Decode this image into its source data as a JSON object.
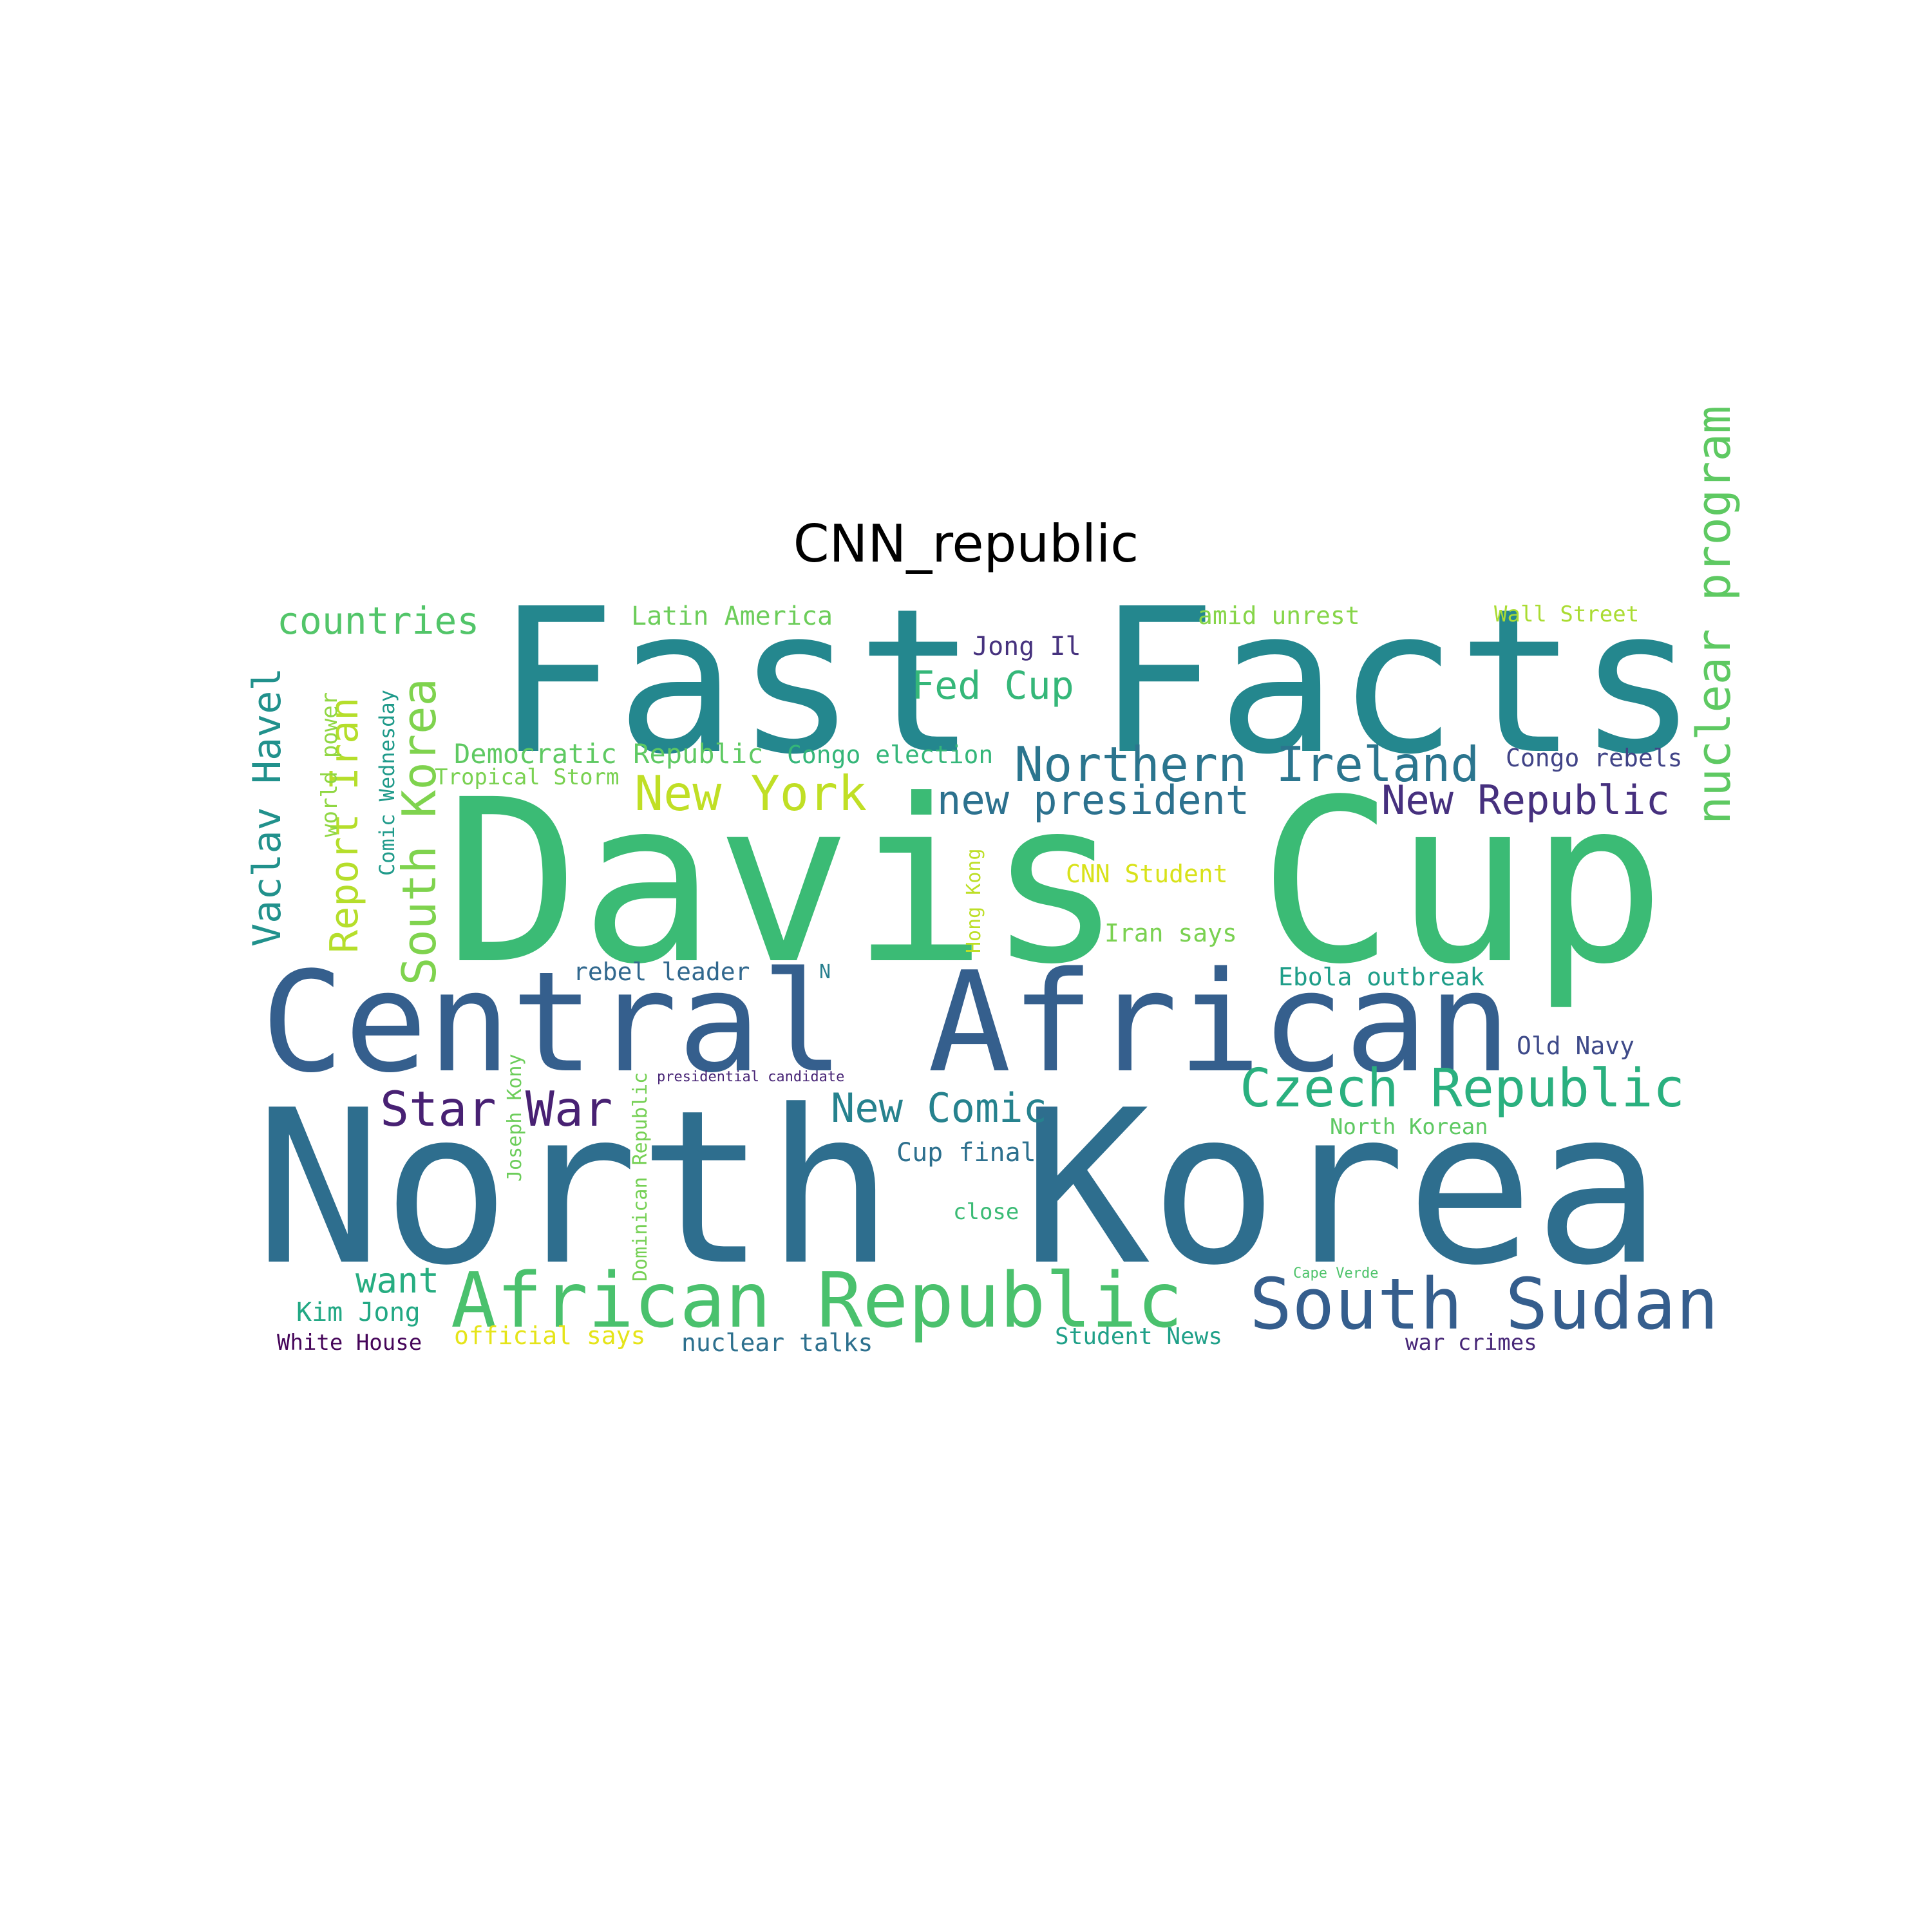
{
  "title": "CNN_republic",
  "words": [
    {
      "text": "Fast Facts",
      "color": "#24878e",
      "weight": 1.0
    },
    {
      "text": "Davis Cup",
      "color": "#3bbb75",
      "weight": 1.0
    },
    {
      "text": "Central African",
      "color": "#355f8d",
      "weight": 0.8
    },
    {
      "text": "North Korea",
      "color": "#2e6e8e",
      "weight": 1.0
    },
    {
      "text": "African Republic",
      "color": "#4ac16d",
      "weight": 0.5
    },
    {
      "text": "South Sudan",
      "color": "#355e8d",
      "weight": 0.4
    },
    {
      "text": "Northern Ireland",
      "color": "#2b758e",
      "weight": 0.3
    },
    {
      "text": "Czech Republic",
      "color": "#2ab07f",
      "weight": 0.3
    },
    {
      "text": "New York",
      "color": "#c0df25",
      "weight": 0.3
    },
    {
      "text": "new president",
      "color": "#2c718e",
      "weight": 0.25
    },
    {
      "text": "New Republic",
      "color": "#46307e",
      "weight": 0.25
    },
    {
      "text": "nuclear program",
      "color": "#5ec962",
      "weight": 0.3
    },
    {
      "text": "countries",
      "color": "#52c569",
      "weight": 0.22
    },
    {
      "text": "South Korea",
      "color": "#7fd34e",
      "weight": 0.3
    },
    {
      "text": "Vaclav Havel",
      "color": "#21918c",
      "weight": 0.25
    },
    {
      "text": "Report Iran",
      "color": "#b5de2b",
      "weight": 0.25
    },
    {
      "text": "Star War",
      "color": "#482173",
      "weight": 0.28
    },
    {
      "text": "New Comic",
      "color": "#26828e",
      "weight": 0.25
    },
    {
      "text": "Fed Cup",
      "color": "#35b779",
      "weight": 0.22
    },
    {
      "text": "Latin America",
      "color": "#6ccd5a",
      "weight": 0.15
    },
    {
      "text": "Jong Il",
      "color": "#46327e",
      "weight": 0.15
    },
    {
      "text": "amid unrest",
      "color": "#86d549",
      "weight": 0.14
    },
    {
      "text": "Wall Street",
      "color": "#aadc32",
      "weight": 0.13
    },
    {
      "text": "Democratic Republic",
      "color": "#5ec962",
      "weight": 0.16
    },
    {
      "text": "Congo election",
      "color": "#34b679",
      "weight": 0.14
    },
    {
      "text": "Congo rebels",
      "color": "#414487",
      "weight": 0.14
    },
    {
      "text": "Tropical Storm",
      "color": "#7ad151",
      "weight": 0.12
    },
    {
      "text": "world power",
      "color": "#90d743",
      "weight": 0.12
    },
    {
      "text": "Comic Wednesday",
      "color": "#1f9a8a",
      "weight": 0.11
    },
    {
      "text": "CNN Student",
      "color": "#d8e219",
      "weight": 0.14
    },
    {
      "text": "Iran says",
      "color": "#7ad151",
      "weight": 0.14
    },
    {
      "text": "Hong Kong",
      "color": "#bddf26",
      "weight": 0.11
    },
    {
      "text": "N",
      "color": "#277f8e",
      "weight": 0.1
    },
    {
      "text": "rebel leader",
      "color": "#31688e",
      "weight": 0.14
    },
    {
      "text": "Ebola outbreak",
      "color": "#1f9e89",
      "weight": 0.14
    },
    {
      "text": "Old Navy",
      "color": "#3e4a89",
      "weight": 0.14
    },
    {
      "text": "presidential candidate",
      "color": "#482576",
      "weight": 0.08
    },
    {
      "text": "Joseph Kony",
      "color": "#6ccd5a",
      "weight": 0.11
    },
    {
      "text": "Dominican Republic",
      "color": "#75d054",
      "weight": 0.11
    },
    {
      "text": "North Korean",
      "color": "#5ec962",
      "weight": 0.12
    },
    {
      "text": "Cup final",
      "color": "#2d708e",
      "weight": 0.14
    },
    {
      "text": "close",
      "color": "#3bbb75",
      "weight": 0.12
    },
    {
      "text": "want",
      "color": "#27ad81",
      "weight": 0.2
    },
    {
      "text": "Cape Verde",
      "color": "#4ec36b",
      "weight": 0.08
    },
    {
      "text": "Kim Jong",
      "color": "#22a884",
      "weight": 0.14
    },
    {
      "text": "White House",
      "color": "#450559",
      "weight": 0.13
    },
    {
      "text": "official says",
      "color": "#e5e419",
      "weight": 0.13
    },
    {
      "text": "nuclear talks",
      "color": "#2d708e",
      "weight": 0.13
    },
    {
      "text": "Student News",
      "color": "#1fa088",
      "weight": 0.13
    },
    {
      "text": "war crimes",
      "color": "#482878",
      "weight": 0.13
    }
  ]
}
